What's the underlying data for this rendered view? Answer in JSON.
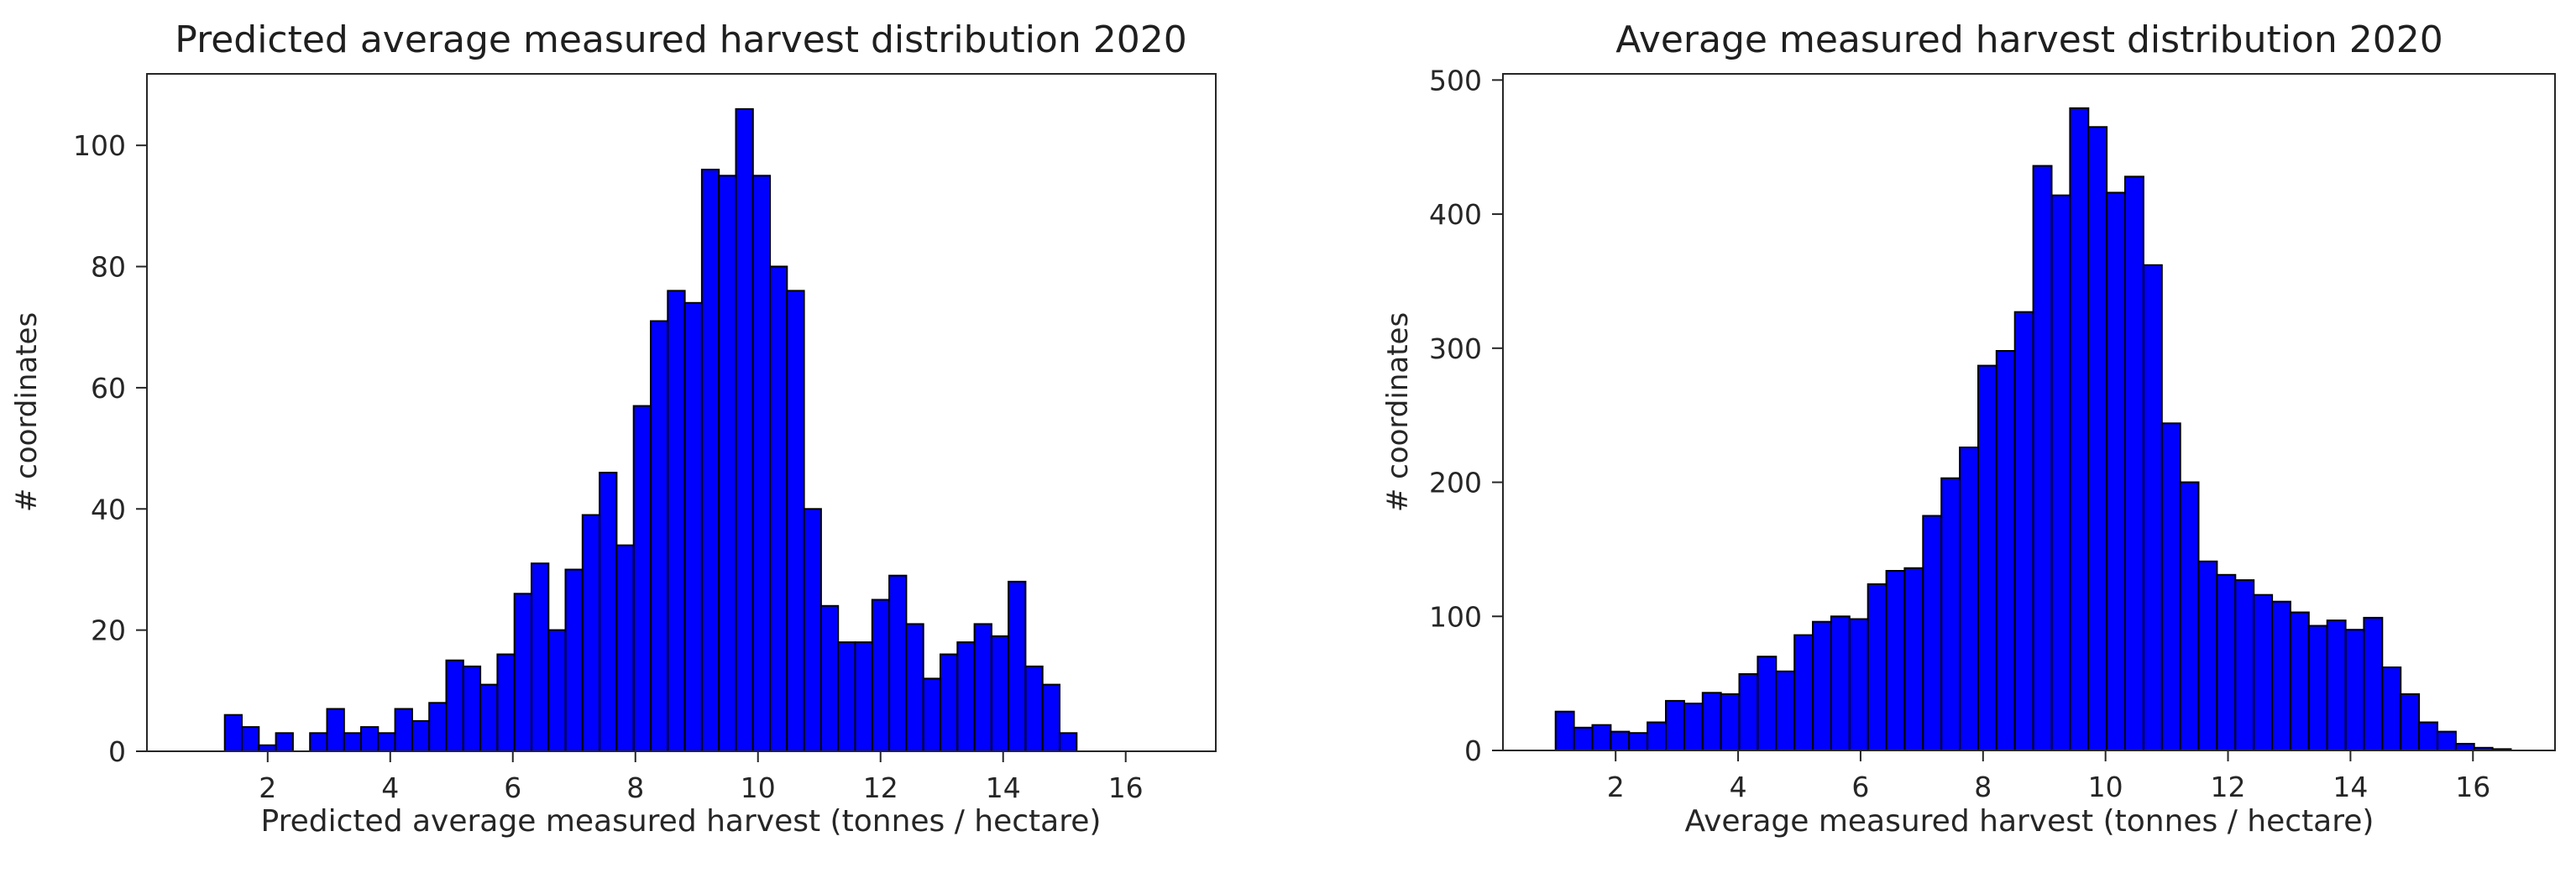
{
  "page": {
    "background": "#ffffff"
  },
  "chart_data": [
    {
      "type": "bar",
      "role": "histogram",
      "title": "Predicted average measured harvest distribution 2020",
      "xlabel": "Predicted average measured harvest (tonnes / hectare)",
      "ylabel": "# coordinates",
      "bin_start": 1.3,
      "bin_width": 0.278,
      "counts": [
        6,
        4,
        1,
        3,
        0,
        3,
        7,
        3,
        4,
        3,
        7,
        5,
        8,
        15,
        14,
        11,
        16,
        26,
        31,
        20,
        30,
        39,
        46,
        34,
        57,
        71,
        76,
        74,
        96,
        95,
        106,
        95,
        80,
        76,
        40,
        24,
        18,
        18,
        25,
        29,
        21,
        12,
        16,
        18,
        21,
        19,
        28,
        14,
        11,
        3
      ],
      "xticks": [
        2,
        4,
        6,
        8,
        10,
        12,
        14,
        16
      ],
      "yticks": [
        0,
        20,
        40,
        60,
        80,
        100
      ],
      "xlim": [
        0.03,
        17.47
      ],
      "ylim": [
        0,
        111.8
      ],
      "grid": false,
      "legend": null,
      "bar_color": "#0000ff",
      "bar_edge_color": "#000000",
      "axis_color": "#262626",
      "text_color": "#262626"
    },
    {
      "type": "bar",
      "role": "histogram",
      "title": "Average measured harvest distribution 2020",
      "xlabel": "Average measured harvest (tonnes / hectare)",
      "ylabel": "# coordinates",
      "bin_start": 1.02,
      "bin_width": 0.3,
      "counts": [
        29,
        17,
        19,
        14,
        13,
        21,
        37,
        35,
        43,
        42,
        57,
        70,
        59,
        86,
        96,
        100,
        98,
        124,
        134,
        136,
        175,
        203,
        226,
        287,
        298,
        327,
        436,
        414,
        479,
        465,
        416,
        428,
        362,
        244,
        200,
        141,
        131,
        127,
        116,
        111,
        103,
        93,
        97,
        90,
        99,
        62,
        42,
        21,
        14,
        5,
        2,
        1
      ],
      "xticks": [
        2,
        4,
        6,
        8,
        10,
        12,
        14,
        16
      ],
      "yticks": [
        0,
        100,
        200,
        300,
        400,
        500
      ],
      "xlim": [
        0.16,
        17.34
      ],
      "ylim": [
        0,
        504.6
      ],
      "grid": false,
      "legend": null,
      "bar_color": "#0000ff",
      "bar_edge_color": "#000000",
      "axis_color": "#262626",
      "text_color": "#262626"
    }
  ]
}
